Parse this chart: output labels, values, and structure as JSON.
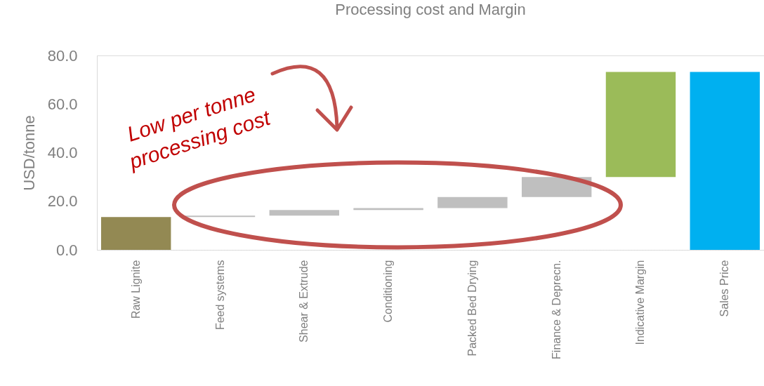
{
  "chart_data": {
    "type": "bar",
    "title": "Processing cost and Margin",
    "ylabel": "USD/tonne",
    "categories": [
      "Raw Lignite",
      "Feed systems",
      "Shear & Extrude",
      "Conditioning",
      "Packed Bed Drying",
      "Finance & Deprecn.",
      "Indicative Margin",
      "Sales Price"
    ],
    "values": [
      13.5,
      0.6,
      2.3,
      0.8,
      4.5,
      8.3,
      43.2,
      73.2
    ],
    "base": [
      0,
      13.5,
      14.1,
      16.4,
      17.2,
      21.7,
      30.0,
      0
    ],
    "colors": [
      "#938953",
      "#bfbfbf",
      "#bfbfbf",
      "#bfbfbf",
      "#bfbfbf",
      "#bfbfbf",
      "#9bbb59",
      "#00b0f0"
    ],
    "ylim": [
      0,
      80
    ],
    "yticks": [
      {
        "value": 0,
        "label": "0.0"
      },
      {
        "value": 20,
        "label": "20.0"
      },
      {
        "value": 40,
        "label": "40.0"
      },
      {
        "value": 60,
        "label": "60.0"
      },
      {
        "value": 80,
        "label": "80.0"
      }
    ],
    "grid": false,
    "annotations": [
      "Low per tonne\nprocessing cost"
    ]
  }
}
